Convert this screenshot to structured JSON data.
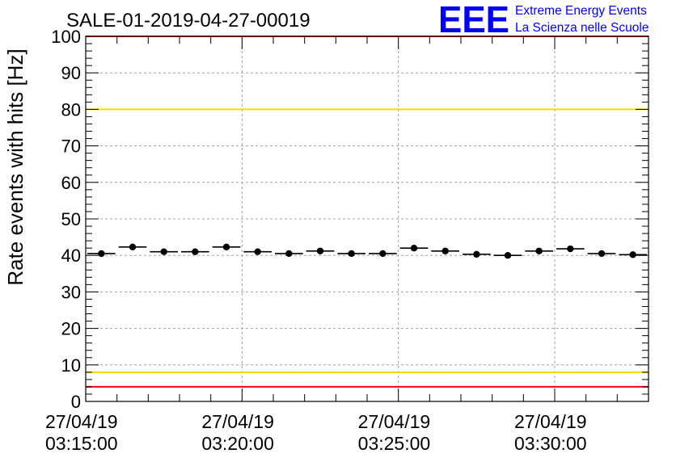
{
  "logo": {
    "mark": "EEE",
    "line1": "Extreme Energy Events",
    "line2": "La Scienza nelle Scuole",
    "color": "#0000ff"
  },
  "chart_data": {
    "type": "scatter",
    "title": "SALE-01-2019-04-27-00019",
    "xlabel": "",
    "ylabel": "Rate events with hits [Hz]",
    "ylim": [
      0,
      100
    ],
    "yticks": [
      0,
      10,
      20,
      30,
      40,
      50,
      60,
      70,
      80,
      90,
      100
    ],
    "grid": true,
    "x_time_range_sec": [
      0,
      1080
    ],
    "xticks": [
      {
        "t": 0,
        "date": "27/04/19",
        "time": "03:15:00"
      },
      {
        "t": 300,
        "date": "27/04/19",
        "time": "03:20:00"
      },
      {
        "t": 600,
        "date": "27/04/19",
        "time": "03:25:00"
      },
      {
        "t": 900,
        "date": "27/04/19",
        "time": "03:30:00"
      }
    ],
    "x_label_align": "center-left",
    "bin_width_sec": 60,
    "points": [
      {
        "t": 30,
        "value": 40.5
      },
      {
        "t": 90,
        "value": 42.3
      },
      {
        "t": 150,
        "value": 41.0
      },
      {
        "t": 210,
        "value": 41.0
      },
      {
        "t": 270,
        "value": 42.3
      },
      {
        "t": 330,
        "value": 41.0
      },
      {
        "t": 390,
        "value": 40.5
      },
      {
        "t": 450,
        "value": 41.2
      },
      {
        "t": 510,
        "value": 40.5
      },
      {
        "t": 570,
        "value": 40.5
      },
      {
        "t": 630,
        "value": 42.0
      },
      {
        "t": 690,
        "value": 41.2
      },
      {
        "t": 750,
        "value": 40.3
      },
      {
        "t": 810,
        "value": 40.0
      },
      {
        "t": 870,
        "value": 41.2
      },
      {
        "t": 930,
        "value": 41.8
      },
      {
        "t": 990,
        "value": 40.5
      },
      {
        "t": 1050,
        "value": 40.2
      }
    ],
    "threshold_lines": [
      {
        "name": "upper-red",
        "value": 100,
        "color": "#ff0000"
      },
      {
        "name": "upper-yellow",
        "value": 80,
        "color": "#ffd700"
      },
      {
        "name": "lower-yellow",
        "value": 8,
        "color": "#ffd700"
      },
      {
        "name": "lower-red",
        "value": 4,
        "color": "#ff0000"
      }
    ]
  }
}
